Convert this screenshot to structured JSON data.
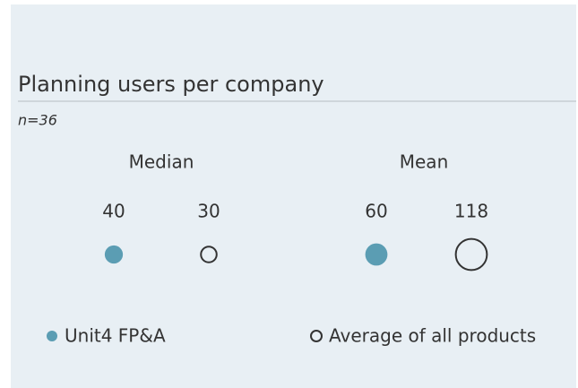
{
  "chart_data": {
    "type": "dot",
    "title": "Planning users per company",
    "subtitle": "n=36",
    "categories": [
      "Median",
      "Mean"
    ],
    "series": [
      {
        "name": "Unit4 FP&A",
        "color": "#5b9db3",
        "marker": "filled",
        "values": [
          40,
          60
        ]
      },
      {
        "name": "Average of all products",
        "color": "#333333",
        "marker": "hollow",
        "values": [
          30,
          118
        ]
      }
    ]
  }
}
